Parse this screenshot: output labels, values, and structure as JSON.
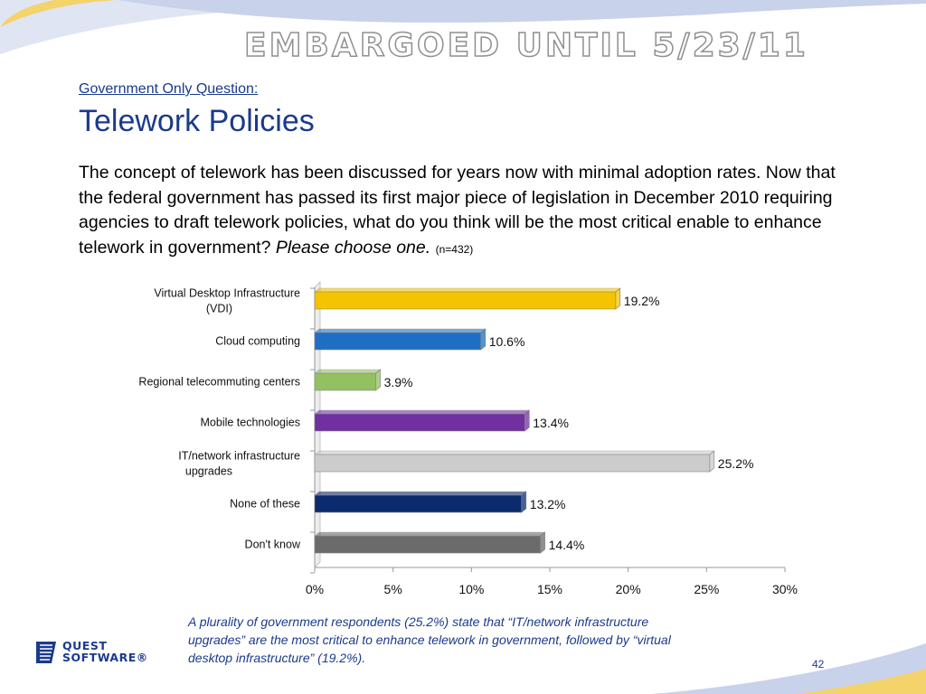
{
  "watermark": "EMBARGOED UNTIL  5/23/11",
  "subtitle": "Government Only Question:",
  "title": "Telework Policies",
  "question": {
    "text": "The concept of telework has been discussed for years now with minimal adoption rates. Now that the federal government has passed its first major piece of legislation in December 2010 requiring agencies to draft telework policies, what do you think will be the most critical enable to enhance telework in government? ",
    "instruction": "Please choose one.",
    "sample": "(n=432)"
  },
  "chart_data": {
    "type": "bar",
    "orientation": "horizontal",
    "categories": [
      "Virtual Desktop Infrastructure (VDI)",
      "Cloud computing",
      "Regional telecommuting centers",
      "Mobile technologies",
      "IT/network infrastructure upgrades",
      "None of these",
      "Don't know"
    ],
    "values": [
      19.2,
      10.6,
      3.9,
      13.4,
      25.2,
      13.2,
      14.4
    ],
    "value_labels": [
      "19.2%",
      "10.6%",
      "3.9%",
      "13.4%",
      "25.2%",
      "13.2%",
      "14.4%"
    ],
    "colors": [
      "#f5c400",
      "#1e6fc4",
      "#93c060",
      "#7030a0",
      "#cccccc",
      "#0c2b6e",
      "#6b6b6b"
    ],
    "xlim": [
      0,
      30
    ],
    "xticks": [
      "0%",
      "5%",
      "10%",
      "15%",
      "20%",
      "25%",
      "30%"
    ],
    "gridlines": false
  },
  "caption": "A plurality of government respondents (25.2%) state that “IT/network infrastructure upgrades” are the most critical to enhance telework in government, followed by “virtual desktop infrastructure” (19.2%).",
  "logo": {
    "line1": "QUEST",
    "line2": "SOFTWARE®"
  },
  "page_number": "42",
  "accent_color": "#1a3a8c"
}
